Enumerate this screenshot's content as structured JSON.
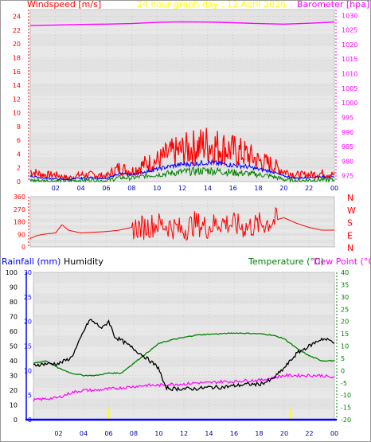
{
  "header": {
    "windspeed_label": "Windspeed [m/s]",
    "title": "24 hour graph day : 12 April 2026",
    "barometer_label": "Barometer [hpa]"
  },
  "colors": {
    "windspeed": "#ff0000",
    "gust": "#ff0000",
    "wind_avg": "#0000ff",
    "wind_low": "#008000",
    "barometer": "#ff00ff",
    "title": "#ffff00",
    "direction": "#ff0000",
    "rainfall_axis": "#0000ff",
    "humidity": "#000000",
    "temperature": "#008000",
    "dew_point": "#ff00ff",
    "rainfall": "#0000ff",
    "plot_bg": "#e8e8e8",
    "stripe_bg": "#dcdcdc",
    "hour_marker": "#ffff00"
  },
  "chart_data": [
    {
      "id": "wind_baro",
      "type": "line",
      "title": "24 hour graph day : 12 April 2026",
      "ylabel": "Windspeed [m/s]",
      "ylabel_right": "Barometer [hpa]",
      "ylim": [
        0,
        25
      ],
      "ylim_right": [
        973,
        1032
      ],
      "left_ticks": [
        "0",
        "2",
        "4",
        "6",
        "8",
        "10",
        "12",
        "14",
        "16",
        "18",
        "20",
        "22",
        "24"
      ],
      "right_ticks": [
        "975",
        "980",
        "985",
        "990",
        "995",
        "1000",
        "1005",
        "1010",
        "1015",
        "1020",
        "1025",
        "1030"
      ],
      "x_ticks": [
        "02",
        "04",
        "06",
        "08",
        "10",
        "12",
        "14",
        "16",
        "18",
        "20",
        "22",
        "00"
      ],
      "series": [
        {
          "key": "gust",
          "x": [
            0,
            1,
            2,
            3,
            4,
            5,
            6,
            7,
            8,
            9,
            10,
            11,
            12,
            13,
            14,
            15,
            16,
            17,
            18,
            19,
            20,
            21,
            22,
            23,
            24
          ],
          "values": [
            1.5,
            1,
            1,
            0.5,
            1,
            1,
            0.8,
            2,
            1.5,
            2.5,
            3,
            4,
            4.5,
            5,
            5.5,
            5,
            4.5,
            4,
            3,
            2.5,
            1.5,
            1,
            1,
            1.2,
            1
          ]
        },
        {
          "key": "wind_avg",
          "x": [
            0,
            1,
            2,
            3,
            4,
            5,
            6,
            7,
            8,
            9,
            10,
            11,
            12,
            13,
            14,
            15,
            16,
            17,
            18,
            19,
            20,
            21,
            22,
            23,
            24
          ],
          "values": [
            0.8,
            0.5,
            0.4,
            0.3,
            0.5,
            0.6,
            0.4,
            1.2,
            1,
            1.4,
            1.8,
            2.2,
            2.5,
            2.6,
            2.8,
            2.6,
            2.4,
            2.2,
            1.8,
            1.5,
            0.8,
            0.5,
            0.6,
            0.7,
            0.6
          ]
        },
        {
          "key": "wind_low",
          "x": [
            0,
            1,
            2,
            3,
            4,
            5,
            6,
            7,
            8,
            9,
            10,
            11,
            12,
            13,
            14,
            15,
            16,
            17,
            18,
            19,
            20,
            21,
            22,
            23,
            24
          ],
          "values": [
            0.2,
            0.1,
            0.1,
            0.1,
            0.2,
            0.2,
            0.1,
            0.6,
            0.5,
            0.8,
            1,
            1.2,
            1.4,
            1.5,
            1.6,
            1.5,
            1.3,
            1.2,
            1,
            0.8,
            0.3,
            0.1,
            0.2,
            0.3,
            0.2
          ]
        },
        {
          "key": "barometer",
          "x": [
            0,
            2,
            4,
            6,
            8,
            10,
            12,
            14,
            16,
            18,
            20,
            22,
            24
          ],
          "values": [
            1026.5,
            1026.7,
            1026.9,
            1027,
            1027.2,
            1027.6,
            1027.8,
            1027.7,
            1027.5,
            1027.2,
            1027,
            1027.3,
            1027.7
          ]
        }
      ]
    },
    {
      "id": "direction",
      "type": "line",
      "ylim": [
        0,
        360
      ],
      "left_ticks": [
        "0",
        "90",
        "180",
        "270",
        "360"
      ],
      "right_labels": [
        "N",
        "W",
        "S",
        "E",
        "N"
      ],
      "series": [
        {
          "key": "direction",
          "x": [
            0,
            0.5,
            1,
            1.5,
            2,
            2.5,
            3,
            3.5,
            4,
            5,
            6,
            7,
            8,
            9,
            10,
            11,
            12,
            13,
            14,
            15,
            16,
            17,
            18,
            19,
            20,
            21,
            22,
            23,
            24
          ],
          "values": [
            60,
            80,
            90,
            95,
            100,
            160,
            120,
            110,
            100,
            105,
            110,
            120,
            140,
            140,
            165,
            150,
            120,
            170,
            140,
            180,
            160,
            140,
            160,
            180,
            210,
            170,
            140,
            120,
            120
          ]
        }
      ]
    },
    {
      "id": "rain_hum_temp",
      "type": "line",
      "ylabel_left": "Rainfall (mm)",
      "ylabel_left2": "Humidity",
      "ylabel_right": "Temperature (°C)",
      "ylabel_right2": "Dew Point (°C)",
      "ylim_humidity": [
        0,
        100
      ],
      "ylim_rain": [
        0,
        30
      ],
      "ylim_temp": [
        -20,
        40
      ],
      "humidity_ticks": [
        "0",
        "10",
        "20",
        "30",
        "40",
        "50",
        "60",
        "70",
        "80",
        "90",
        "100"
      ],
      "rain_ticks": [
        "0",
        "5",
        "10",
        "15",
        "20",
        "25",
        "30"
      ],
      "temp_ticks": [
        "-20",
        "-15",
        "-10",
        "-5",
        "0",
        "5",
        "10",
        "15",
        "20",
        "25",
        "30",
        "35",
        "40"
      ],
      "x_ticks": [
        "02",
        "04",
        "06",
        "08",
        "10",
        "12",
        "14",
        "16",
        "18",
        "20",
        "22",
        "00"
      ],
      "markers": [
        "06",
        "20:30"
      ],
      "series": [
        {
          "key": "humidity",
          "x": [
            0,
            1,
            2,
            2.5,
            3,
            3.5,
            4,
            4.5,
            5,
            5.5,
            6,
            6.5,
            7,
            8,
            9,
            10,
            10.5,
            11,
            12,
            13,
            14,
            15,
            16,
            17,
            18,
            19,
            20,
            21,
            22,
            23,
            24
          ],
          "values": [
            37,
            38,
            38,
            40,
            42,
            50,
            60,
            68,
            65,
            62,
            67,
            56,
            54,
            48,
            42,
            35,
            22,
            21,
            21,
            21,
            22,
            22,
            23,
            24,
            24,
            27,
            35,
            45,
            50,
            55,
            53
          ]
        },
        {
          "key": "temperature",
          "x": [
            0,
            1,
            2,
            3,
            4,
            5,
            6,
            7,
            8,
            9,
            10,
            11,
            12,
            13,
            14,
            15,
            16,
            17,
            18,
            19,
            20,
            21,
            22,
            23,
            24
          ],
          "values": [
            3,
            4,
            1,
            -1,
            -2,
            -2,
            -1,
            -1,
            3,
            7,
            11,
            12.5,
            13.5,
            14.5,
            14.8,
            15,
            15.3,
            15.2,
            15.0,
            14.5,
            13,
            9,
            6,
            4,
            4
          ]
        },
        {
          "key": "dew_point",
          "x": [
            0,
            1,
            2,
            3,
            4,
            5,
            6,
            7,
            8,
            9,
            10,
            11,
            12,
            13,
            14,
            15,
            16,
            17,
            18,
            19,
            20,
            21,
            22,
            23,
            24
          ],
          "values": [
            -12,
            -11.5,
            -11,
            -9,
            -8,
            -8,
            -7.5,
            -7,
            -6.5,
            -6,
            -6,
            -5.5,
            -5.5,
            -5,
            -5,
            -4.5,
            -4.5,
            -4,
            -4,
            -3,
            -2,
            -2,
            -2,
            -2,
            -3
          ]
        },
        {
          "key": "rainfall",
          "x": [
            0,
            24
          ],
          "values": [
            0,
            0
          ]
        }
      ]
    }
  ]
}
